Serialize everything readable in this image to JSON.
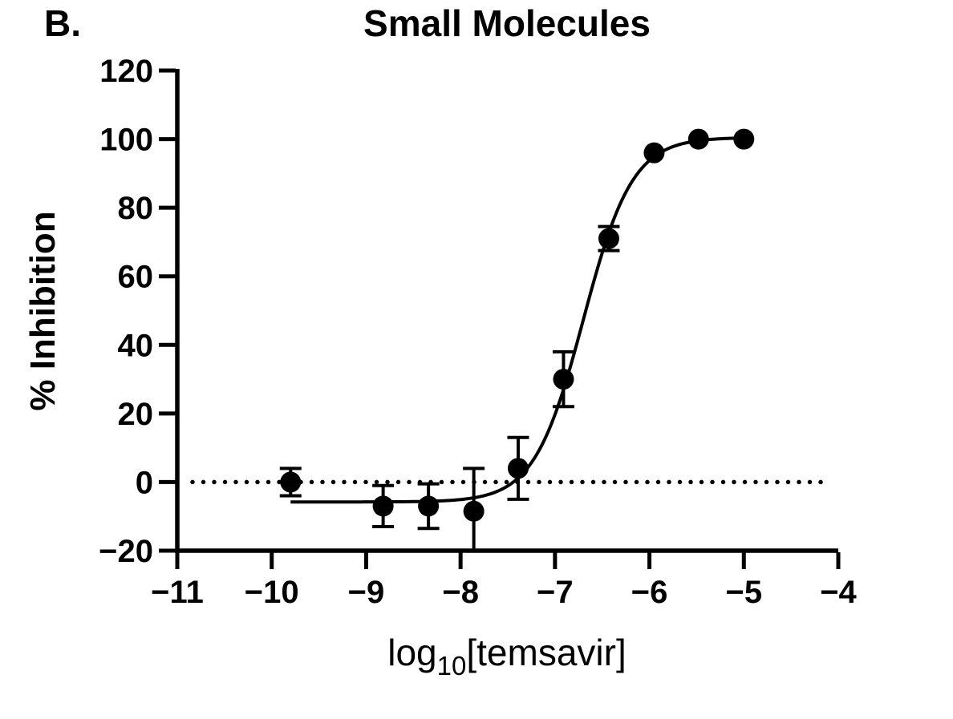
{
  "panel_label": "B.",
  "chart_data": {
    "type": "scatter",
    "title": "Small Molecules",
    "xlabel": "log10[temsavir]",
    "xlabel_parts": {
      "prefix": "log",
      "subscript": "10",
      "suffix": "[temsavir]"
    },
    "ylabel": "% Inhibition",
    "xlim": [
      -11,
      -4
    ],
    "ylim": [
      -20,
      120
    ],
    "x_ticks": [
      -11,
      -10,
      -9,
      -8,
      -7,
      -6,
      -5,
      -4
    ],
    "x_tick_labels": [
      "−11",
      "−10",
      "−9",
      "−8",
      "−7",
      "−6",
      "−5",
      "−4"
    ],
    "y_ticks": [
      -20,
      0,
      20,
      40,
      60,
      80,
      100,
      120
    ],
    "y_tick_labels": [
      "−20",
      "0",
      "20",
      "40",
      "60",
      "80",
      "100",
      "120"
    ],
    "grid": false,
    "legend": "none",
    "points": {
      "x": [
        -9.8,
        -8.82,
        -8.34,
        -7.86,
        -7.39,
        -6.91,
        -6.43,
        -5.95,
        -5.48,
        -5.0
      ],
      "y": [
        0,
        -7,
        -7,
        -8.5,
        4,
        30,
        71,
        96,
        100,
        100
      ],
      "yerr": [
        4,
        6,
        6.5,
        12.5,
        9,
        8,
        3.5,
        0,
        0,
        0
      ]
    },
    "fit_curve": {
      "model": "four_parameter_logistic",
      "bottom": -5.8,
      "top": 100.5,
      "log_ic50": -6.7,
      "hill": 1.67,
      "x_start": -9.8,
      "x_end": -5.0
    },
    "reference_line": {
      "y": 0,
      "style": "dotted"
    },
    "marker_color": "#000000",
    "line_color": "#000000",
    "background_color": "#ffffff"
  }
}
